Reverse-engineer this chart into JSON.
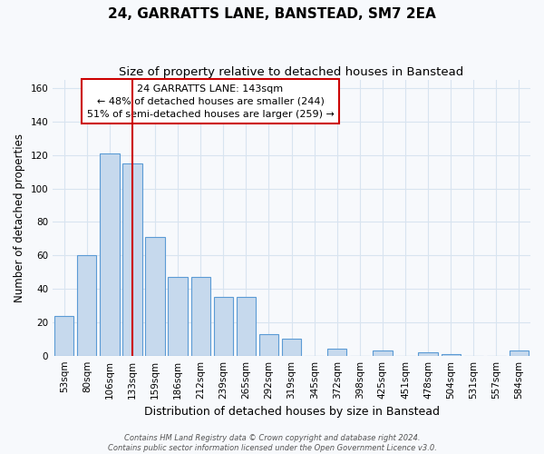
{
  "title": "24, GARRATTS LANE, BANSTEAD, SM7 2EA",
  "subtitle": "Size of property relative to detached houses in Banstead",
  "xlabel": "Distribution of detached houses by size in Banstead",
  "ylabel": "Number of detached properties",
  "categories": [
    "53sqm",
    "80sqm",
    "106sqm",
    "133sqm",
    "159sqm",
    "186sqm",
    "212sqm",
    "239sqm",
    "265sqm",
    "292sqm",
    "319sqm",
    "345sqm",
    "372sqm",
    "398sqm",
    "425sqm",
    "451sqm",
    "478sqm",
    "504sqm",
    "531sqm",
    "557sqm",
    "584sqm"
  ],
  "values": [
    24,
    60,
    121,
    115,
    71,
    47,
    47,
    35,
    35,
    13,
    10,
    0,
    4,
    0,
    3,
    0,
    2,
    1,
    0,
    0,
    3
  ],
  "bar_color": "#c6d9ed",
  "bar_edge_color": "#5b9bd5",
  "vline_x_pos": 3.0,
  "vline_color": "#cc0000",
  "annotation_text": "24 GARRATTS LANE: 143sqm\n← 48% of detached houses are smaller (244)\n51% of semi-detached houses are larger (259) →",
  "annotation_box_edgecolor": "#cc0000",
  "annotation_bg": "#ffffff",
  "footer_text": "Contains HM Land Registry data © Crown copyright and database right 2024.\nContains public sector information licensed under the Open Government Licence v3.0.",
  "bg_color": "#f7f9fc",
  "grid_color": "#d8e4f0",
  "ylim": [
    0,
    165
  ],
  "yticks": [
    0,
    20,
    40,
    60,
    80,
    100,
    120,
    140,
    160
  ],
  "title_fontsize": 11,
  "subtitle_fontsize": 9.5,
  "ylabel_fontsize": 8.5,
  "xlabel_fontsize": 9,
  "tick_fontsize": 7.5,
  "footer_fontsize": 6,
  "ann_fontsize": 8
}
